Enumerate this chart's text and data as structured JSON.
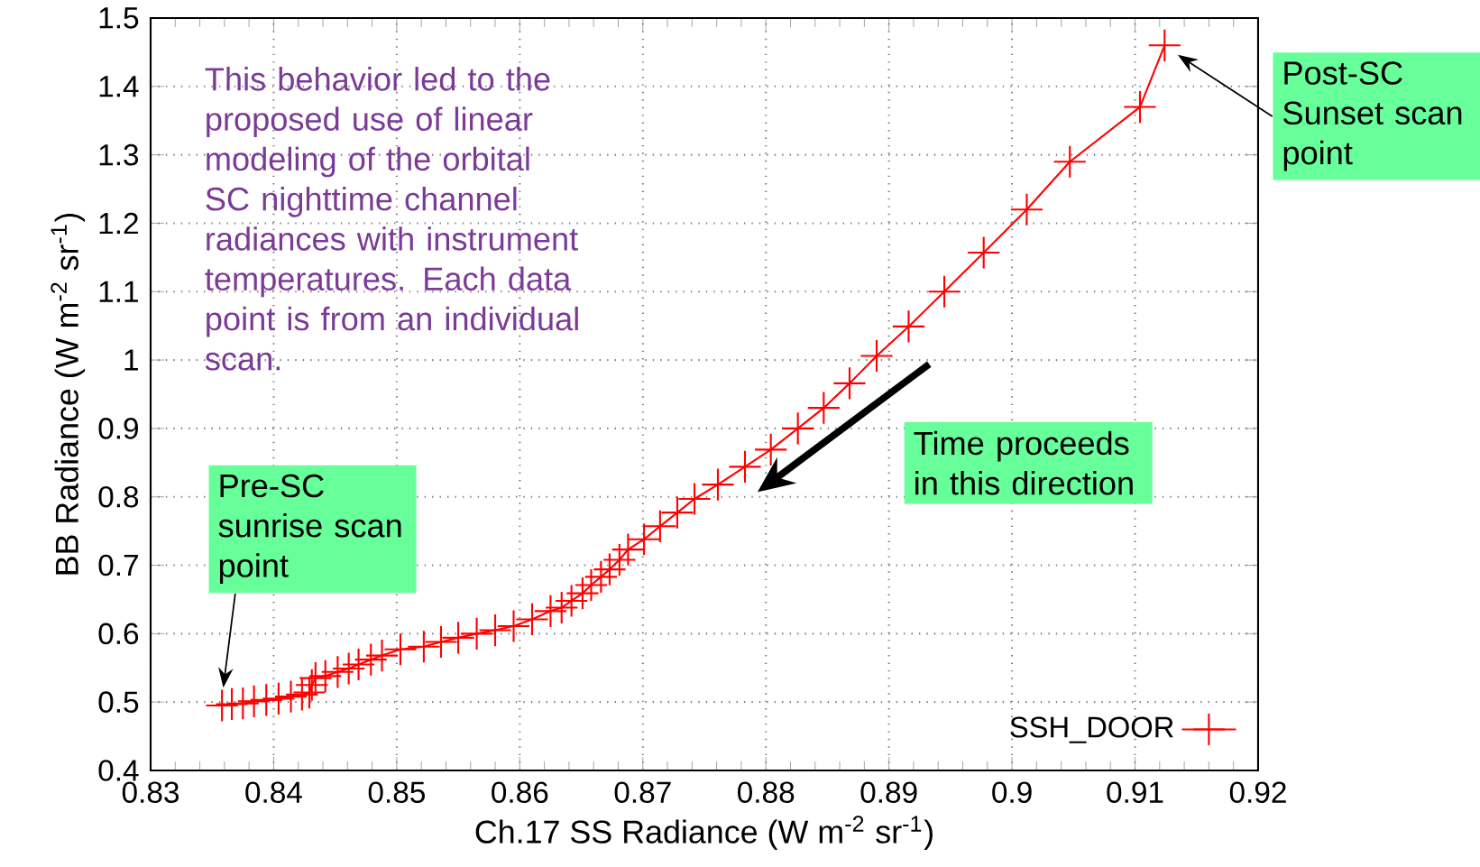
{
  "chart_data": {
    "type": "line",
    "xlabel": "Ch.17 SS Radiance (W m$^{-2}$ sr$^{-1}$)",
    "ylabel": "BB Radiance (W m$^{-2}$ sr$^{-1}$)",
    "x": [
      0.8358,
      0.8366,
      0.8375,
      0.8384,
      0.8394,
      0.8404,
      0.8414,
      0.8423,
      0.8429,
      0.8431,
      0.8434,
      0.8442,
      0.8452,
      0.8461,
      0.8469,
      0.8479,
      0.8488,
      0.8503,
      0.8522,
      0.8536,
      0.855,
      0.8565,
      0.858,
      0.8595,
      0.861,
      0.8625,
      0.8634,
      0.8642,
      0.8651,
      0.8658,
      0.8666,
      0.8673,
      0.8681,
      0.8688,
      0.8701,
      0.8714,
      0.8728,
      0.8742,
      0.8761,
      0.8783,
      0.8804,
      0.8826,
      0.8847,
      0.8868,
      0.889,
      0.8916,
      0.8945,
      0.8977,
      0.9012,
      0.9047,
      0.9104,
      0.9124
    ],
    "series": [
      {
        "name": "SSH_DOOR",
        "color": "#ff0000",
        "values": [
          0.495,
          0.497,
          0.498,
          0.501,
          0.503,
          0.505,
          0.508,
          0.511,
          0.514,
          0.525,
          0.535,
          0.538,
          0.544,
          0.549,
          0.555,
          0.562,
          0.568,
          0.577,
          0.581,
          0.588,
          0.594,
          0.6,
          0.605,
          0.611,
          0.621,
          0.633,
          0.638,
          0.648,
          0.659,
          0.671,
          0.683,
          0.694,
          0.708,
          0.723,
          0.738,
          0.757,
          0.777,
          0.797,
          0.818,
          0.844,
          0.869,
          0.9,
          0.93,
          0.966,
          1.006,
          1.049,
          1.1,
          1.157,
          1.22,
          1.29,
          1.37,
          1.46
        ]
      }
    ],
    "xlim": [
      0.83,
      0.92
    ],
    "ylim": [
      0.4,
      1.5
    ],
    "xticks": [
      0.83,
      0.84,
      0.85,
      0.86,
      0.87,
      0.88,
      0.89,
      0.9,
      0.91,
      0.92
    ],
    "yticks": [
      0.4,
      0.5,
      0.6,
      0.7,
      0.8,
      0.9,
      1,
      1.1,
      1.2,
      1.3,
      1.4,
      1.5
    ],
    "grid": true,
    "legend": "bottom right",
    "marker": "cross",
    "line_style": "solid",
    "annotations": [
      "This behavior led to the proposed use of linear modeling of the orbital SC nighttime channel radiances with instrument temperatures. Each data point is from an individual scan.",
      "Pre-SC sunrise scan point",
      "Post-SC Sunset scan point",
      "Time proceeds in this direction"
    ]
  }
}
